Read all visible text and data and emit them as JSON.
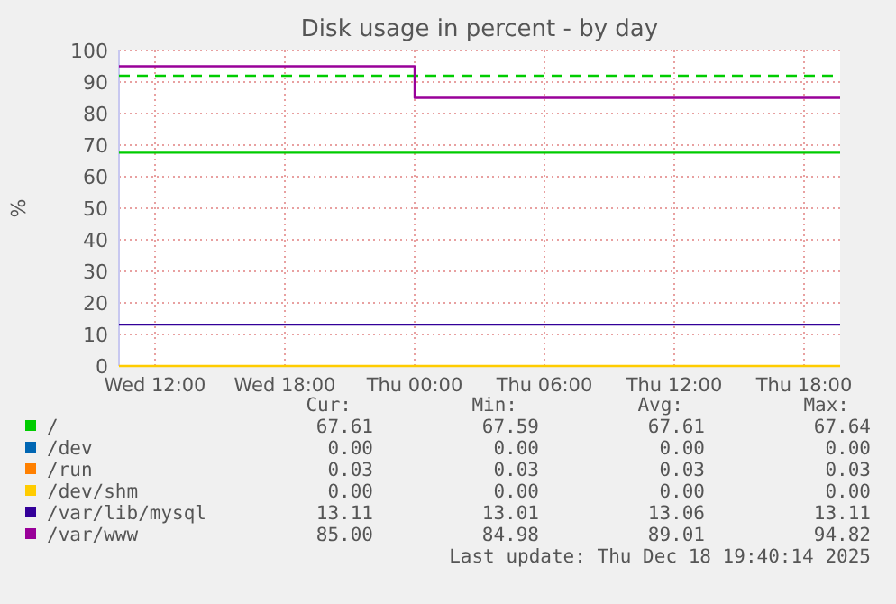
{
  "chart_data": {
    "type": "step",
    "title": "Disk usage in percent - by day",
    "ylabel": "%",
    "xlim": [
      "2025-12-17T10:20",
      "2025-12-18T19:40"
    ],
    "xticks": [
      {
        "value": "2025-12-17T12:00",
        "label": "Wed 12:00"
      },
      {
        "value": "2025-12-17T18:00",
        "label": "Wed 18:00"
      },
      {
        "value": "2025-12-18T00:00",
        "label": "Thu 00:00"
      },
      {
        "value": "2025-12-18T06:00",
        "label": "Thu 06:00"
      },
      {
        "value": "2025-12-18T12:00",
        "label": "Thu 12:00"
      },
      {
        "value": "2025-12-18T18:00",
        "label": "Thu 18:00"
      }
    ],
    "ylim": [
      0,
      100
    ],
    "yticks": [
      0,
      10,
      20,
      30,
      40,
      50,
      60,
      70,
      80,
      90,
      100
    ],
    "grid": true,
    "legend": "bottom",
    "series": [
      {
        "name": "/",
        "color": "#00cc00",
        "x": [
          "2025-12-17T10:20",
          "2025-12-18T19:40"
        ],
        "values": [
          67.6,
          67.6
        ]
      },
      {
        "name": "/dev",
        "color": "#0066b3"
      },
      {
        "name": "/run",
        "color": "#ff8000"
      },
      {
        "name": "/dev/shm",
        "color": "#ffcc00",
        "x": [
          "2025-12-17T10:20",
          "2025-12-18T19:40"
        ],
        "values": [
          0,
          0
        ]
      },
      {
        "name": "/var/lib/mysql",
        "color": "#330099",
        "x": [
          "2025-12-17T10:20",
          "2025-12-18T19:40"
        ],
        "values": [
          13.1,
          13.1
        ]
      },
      {
        "name": "/var/www",
        "color": "#990099",
        "x": [
          "2025-12-17T10:20",
          "2025-12-18T00:00",
          "2025-12-18T19:40"
        ],
        "values": [
          95,
          85,
          85
        ]
      }
    ],
    "ref_lines": [
      {
        "axis": "y",
        "value": 92,
        "color": "#00cc00",
        "line_style": "dashed"
      }
    ],
    "annotations": [
      "Cur:",
      "Min:",
      "Avg:",
      "Max:",
      "67.61",
      "67.59",
      "67.61",
      "67.64",
      "0.00",
      "0.00",
      "0.00",
      "0.00",
      "0.03",
      "0.03",
      "0.03",
      "0.03",
      "0.00",
      "0.00",
      "0.00",
      "0.00",
      "13.11",
      "13.01",
      "13.06",
      "13.11",
      "85.00",
      "84.98",
      "89.01",
      "94.82",
      "Last update: Thu Dec 18 19:40:14 2025"
    ]
  }
}
